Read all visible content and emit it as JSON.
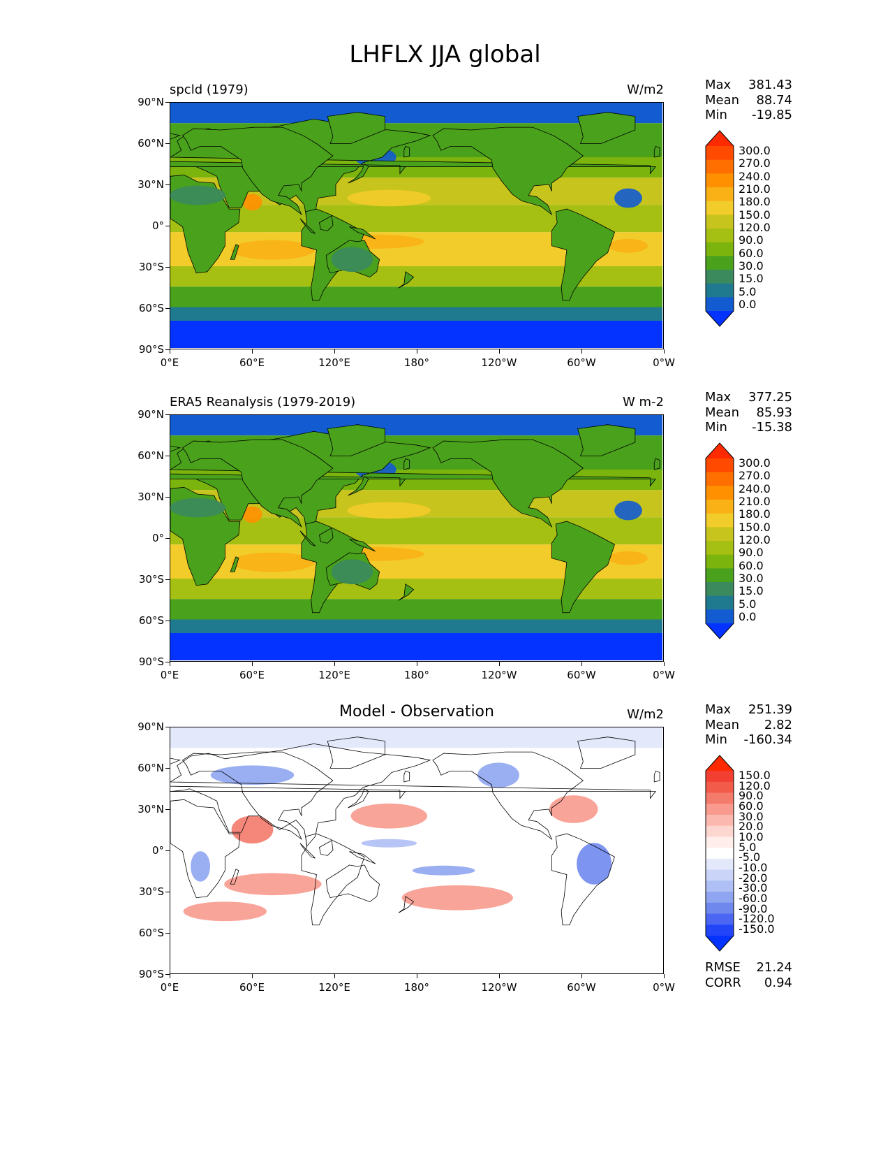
{
  "figure": {
    "title": "LHFLX JJA global"
  },
  "lat_labels": [
    "90°N",
    "60°N",
    "30°N",
    "0°",
    "30°S",
    "60°S",
    "90°S"
  ],
  "lon_labels": [
    "0°E",
    "60°E",
    "120°E",
    "180°",
    "120°W",
    "60°W",
    "0°W"
  ],
  "panels": [
    {
      "id": "model",
      "title": "spcld (1979)",
      "units": "W/m2",
      "stats": [
        {
          "label": "Max",
          "value": "381.43"
        },
        {
          "label": "Mean",
          "value": "88.74"
        },
        {
          "label": "Min",
          "value": "-19.85"
        }
      ],
      "colorbar": {
        "levels": [
          "300.0",
          "270.0",
          "240.0",
          "210.0",
          "180.0",
          "150.0",
          "120.0",
          "90.0",
          "60.0",
          "30.0",
          "15.0",
          "5.0",
          "0.0"
        ],
        "colors": [
          "#ff2a00",
          "#ff4a00",
          "#ff6f00",
          "#ff9000",
          "#f9b116",
          "#f2cc2a",
          "#c8c41e",
          "#a5bf13",
          "#7cb40e",
          "#4aa11b",
          "#3a8a5e",
          "#1f7a90",
          "#125bd1",
          "#0433ff"
        ]
      }
    },
    {
      "id": "obs",
      "title": "ERA5 Reanalysis (1979-2019)",
      "units": "W m-2",
      "stats": [
        {
          "label": "Max",
          "value": "377.25"
        },
        {
          "label": "Mean",
          "value": "85.93"
        },
        {
          "label": "Min",
          "value": "-15.38"
        }
      ],
      "colorbar": {
        "levels": [
          "300.0",
          "270.0",
          "240.0",
          "210.0",
          "180.0",
          "150.0",
          "120.0",
          "90.0",
          "60.0",
          "30.0",
          "15.0",
          "5.0",
          "0.0"
        ],
        "colors": [
          "#ff2a00",
          "#ff4a00",
          "#ff6f00",
          "#ff9000",
          "#f9b116",
          "#f2cc2a",
          "#c8c41e",
          "#a5bf13",
          "#7cb40e",
          "#4aa11b",
          "#3a8a5e",
          "#1f7a90",
          "#125bd1",
          "#0433ff"
        ]
      }
    },
    {
      "id": "diff",
      "title": "Model - Observation",
      "units": "W/m2",
      "stats": [
        {
          "label": "Max",
          "value": "251.39"
        },
        {
          "label": "Mean",
          "value": "2.82"
        },
        {
          "label": "Min",
          "value": "-160.34"
        }
      ],
      "extra_stats": [
        {
          "label": "RMSE",
          "value": "21.24"
        },
        {
          "label": "CORR",
          "value": "0.94"
        }
      ],
      "colorbar": {
        "levels": [
          "150.0",
          "120.0",
          "90.0",
          "60.0",
          "30.0",
          "20.0",
          "10.0",
          "5.0",
          "-5.0",
          "-10.0",
          "-20.0",
          "-30.0",
          "-60.0",
          "-90.0",
          "-120.0",
          "-150.0"
        ],
        "colors": [
          "#ff2a00",
          "#f23f32",
          "#f25a4a",
          "#f47a6c",
          "#f89a8e",
          "#fbb8ae",
          "#fdd6d0",
          "#ffeeec",
          "#ffffff",
          "#e3e9fb",
          "#c9d4f8",
          "#aebff5",
          "#8fa5f1",
          "#6f88ee",
          "#4a66f3",
          "#2245f8",
          "#0433ff"
        ]
      }
    }
  ]
}
